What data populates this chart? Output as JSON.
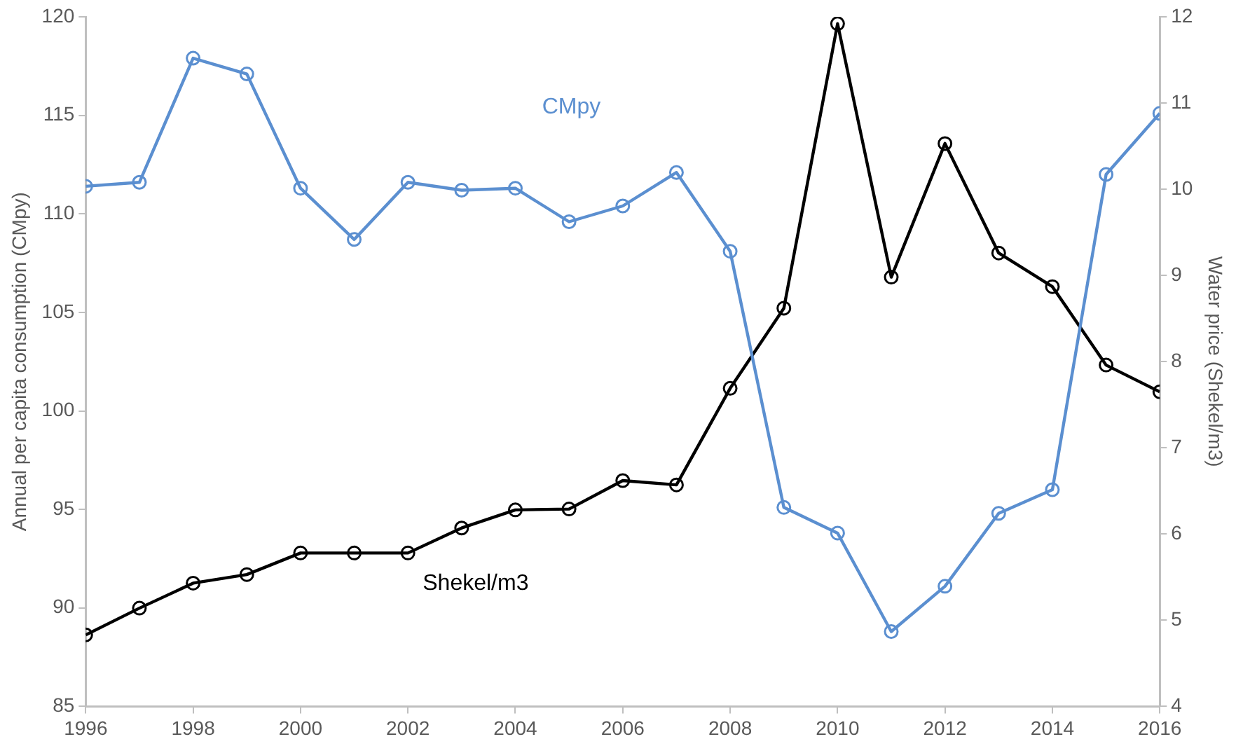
{
  "chart_data": {
    "type": "line",
    "ylabel": "Annual per capita consumption (CMpy)",
    "y2label": "Water price (Shekel/m3)",
    "x": [
      1996,
      1997,
      1998,
      1999,
      2000,
      2001,
      2002,
      2003,
      2004,
      2005,
      2006,
      2007,
      2008,
      2009,
      2010,
      2011,
      2012,
      2013,
      2014,
      2015,
      2016
    ],
    "xlim": [
      1996,
      2016
    ],
    "xticks": [
      1996,
      1998,
      2000,
      2002,
      2004,
      2006,
      2008,
      2010,
      2012,
      2014,
      2016
    ],
    "ylim": [
      85,
      120
    ],
    "yticks": [
      85,
      90,
      95,
      100,
      105,
      110,
      115,
      120
    ],
    "y2lim": [
      4,
      12
    ],
    "y2ticks": [
      4,
      5,
      6,
      7,
      8,
      9,
      10,
      11,
      12
    ],
    "series": [
      {
        "name": "CMpy",
        "color": "#5b8fd0",
        "values": [
          111.4,
          111.6,
          117.9,
          117.1,
          111.3,
          108.7,
          111.6,
          111.2,
          111.3,
          109.6,
          110.4,
          112.1,
          108.1,
          95.1,
          93.8,
          88.8,
          91.1,
          94.8,
          96.0,
          112.0,
          115.1
        ]
      },
      {
        "name": "Shekel/m3",
        "color": "#000000",
        "axis": "y2",
        "values": [
          4.83,
          5.14,
          5.43,
          5.53,
          5.78,
          5.78,
          5.78,
          6.07,
          6.28,
          6.29,
          6.62,
          6.57,
          7.69,
          8.62,
          11.92,
          8.98,
          10.53,
          9.26,
          8.87,
          7.96,
          7.65
        ]
      }
    ],
    "grid": false,
    "legend": false,
    "marker": "circle",
    "line_style": "solid"
  }
}
